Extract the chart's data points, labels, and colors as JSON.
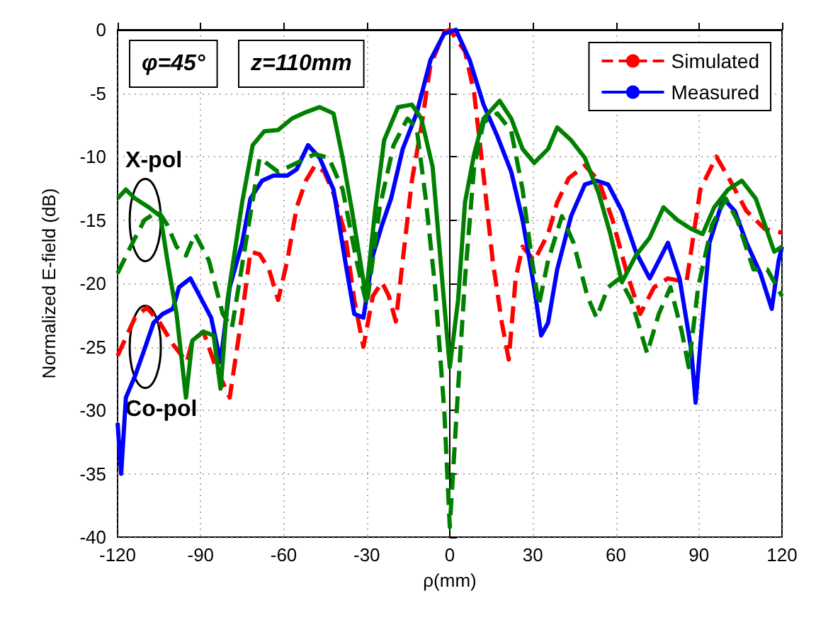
{
  "chart_data": {
    "type": "line",
    "xlabel": "ρ(mm)",
    "ylabel": "Normalized E-field (dB)",
    "xlim": [
      -120,
      120
    ],
    "ylim": [
      -40,
      0
    ],
    "xticks": [
      -120,
      -90,
      -60,
      -30,
      0,
      30,
      60,
      90,
      120
    ],
    "yticks": [
      -40,
      -35,
      -30,
      -25,
      -20,
      -15,
      -10,
      -5,
      0
    ],
    "grid": true,
    "legend": "top right",
    "marker": "none",
    "annotations": [
      "φ=45°",
      "z=110mm",
      {
        "text": "X-pol",
        "x": -110,
        "y": -15
      },
      {
        "text": "Co-pol",
        "x": -110,
        "y": -25
      }
    ],
    "series": [
      {
        "name": "Simulated",
        "color": "#ff0000",
        "line_style": "dashed",
        "x": [
          -120,
          -113.7,
          -109.5,
          -105,
          -100,
          -95,
          -93,
          -89,
          -84.5,
          -79.5,
          -75,
          -72,
          -68.7,
          -65.3,
          -62,
          -58.7,
          -55.3,
          -52,
          -48.7,
          -45.3,
          -42,
          -37.8,
          -34.5,
          -31.2,
          -27.8,
          -24.5,
          -22,
          -19.5,
          -17,
          -13.7,
          -10.3,
          -7,
          -2,
          0,
          5.5,
          8.8,
          12.2,
          15.5,
          18.8,
          21.3,
          23.8,
          26.3,
          30.5,
          35.5,
          38.8,
          43,
          48.8,
          53.8,
          58.8,
          64,
          68.8,
          73.8,
          78.8,
          85.5,
          90.5,
          96.3,
          101.3,
          107.2,
          113.8,
          120
        ],
        "values": [
          -25.7,
          -22.7,
          -21.9,
          -23,
          -24.8,
          -26.2,
          -24.5,
          -23.8,
          -26.6,
          -29,
          -22.4,
          -17.5,
          -17.7,
          -18.9,
          -21.3,
          -18.2,
          -14,
          -11.9,
          -10.7,
          -11.2,
          -12.9,
          -16.1,
          -21.3,
          -25,
          -21,
          -19.9,
          -21,
          -23,
          -18.2,
          -11.9,
          -7.7,
          -2.8,
          -0.2,
          0,
          -1.7,
          -5,
          -11.5,
          -18.2,
          -23.1,
          -26,
          -19.6,
          -17.1,
          -18.2,
          -16.1,
          -13.6,
          -11.7,
          -10.7,
          -11.9,
          -15,
          -19.2,
          -22.4,
          -20.3,
          -19.6,
          -19.9,
          -12.6,
          -10,
          -11.9,
          -14.3,
          -15.7,
          -16
        ]
      },
      {
        "name": "Measured",
        "color": "#0000ff",
        "line_style": "solid",
        "x": [
          -120,
          -118.7,
          -117,
          -113.7,
          -110.3,
          -107,
          -103.7,
          -100,
          -97.8,
          -93.7,
          -90.3,
          -86.2,
          -82.8,
          -79.5,
          -75,
          -72,
          -67.8,
          -63.7,
          -58.7,
          -55.3,
          -51.2,
          -47,
          -42,
          -37.8,
          -34.5,
          -31.2,
          -27.8,
          -24.5,
          -21.2,
          -17,
          -12,
          -7,
          -2,
          2.2,
          7.2,
          12.2,
          17.2,
          22.2,
          26.3,
          30.5,
          33,
          35.5,
          38.8,
          43.8,
          48.8,
          53,
          57.2,
          62.2,
          67.2,
          72.2,
          75.5,
          78.8,
          83,
          87.2,
          88.8,
          90.5,
          93.8,
          98.8,
          103,
          107.2,
          112.2,
          116.3,
          118.8,
          120
        ],
        "values": [
          -31,
          -35,
          -29,
          -27.3,
          -25.2,
          -23.1,
          -22.4,
          -22,
          -20.3,
          -19.6,
          -21,
          -22.7,
          -26.2,
          -20.3,
          -16.8,
          -13.3,
          -11.9,
          -11.5,
          -11.5,
          -11,
          -9.1,
          -10.1,
          -12.6,
          -18.2,
          -22.4,
          -22.7,
          -17.8,
          -15.4,
          -13.3,
          -9.4,
          -6.6,
          -2.4,
          -0.3,
          0,
          -2.4,
          -5.9,
          -8.4,
          -11.2,
          -15,
          -20.3,
          -24.1,
          -23.1,
          -18.9,
          -14.7,
          -12.2,
          -11.9,
          -12.2,
          -14.3,
          -17.5,
          -19.6,
          -18.2,
          -16.8,
          -19.6,
          -25.2,
          -29.4,
          -24.8,
          -16.8,
          -13.3,
          -14.3,
          -16.8,
          -19.2,
          -22,
          -18.2,
          -17.1
        ]
      },
      {
        "color": "#008000",
        "line_style": "dashed",
        "x": [
          -120,
          -115.3,
          -110.3,
          -105.3,
          -102,
          -98.7,
          -95.3,
          -92,
          -87,
          -82,
          -78.7,
          -68.7,
          -62,
          -55.3,
          -48.7,
          -43.7,
          -38.7,
          -33.7,
          -30,
          -25.3,
          -20.3,
          -15.3,
          -12,
          -8.7,
          -5.3,
          -2,
          0,
          3,
          5.5,
          8.8,
          12.2,
          17.2,
          22.2,
          26.3,
          29.7,
          32.2,
          35.5,
          40.5,
          44.7,
          49.7,
          53,
          57.2,
          61.3,
          65.5,
          71.3,
          75.5,
          79.7,
          83.8,
          86.3,
          89.7,
          94.7,
          99.7,
          103.8,
          109.7,
          114.7,
          120
        ],
        "values": [
          -19.2,
          -17.1,
          -15,
          -14.3,
          -15.4,
          -17.1,
          -17.8,
          -16.1,
          -18.2,
          -22.4,
          -23.5,
          -10.1,
          -11.2,
          -10.5,
          -9.8,
          -10.1,
          -12.6,
          -18.2,
          -21.7,
          -14,
          -9.1,
          -7,
          -7.7,
          -13.3,
          -20.3,
          -30,
          -39.2,
          -28.3,
          -19.6,
          -10.8,
          -7.3,
          -6.6,
          -8,
          -12.6,
          -18.2,
          -21.7,
          -18.2,
          -14.7,
          -16.8,
          -21,
          -22.7,
          -20.3,
          -19.6,
          -21.3,
          -25.5,
          -22.4,
          -20.3,
          -23.8,
          -26.6,
          -20.3,
          -15.4,
          -13.3,
          -15,
          -18.9,
          -18.9,
          -21
        ]
      },
      {
        "color": "#008000",
        "line_style": "solid",
        "x": [
          -120,
          -117,
          -113.7,
          -108.7,
          -104.5,
          -102,
          -98.7,
          -95.3,
          -93,
          -89,
          -85.3,
          -82.8,
          -80.3,
          -75,
          -71.2,
          -67,
          -62,
          -57,
          -52,
          -47,
          -42,
          -38.7,
          -35.3,
          -30.3,
          -27,
          -23.7,
          -18.7,
          -13.7,
          -10.3,
          -6.2,
          -2.8,
          0,
          3,
          5.5,
          8.8,
          12.2,
          18,
          22.2,
          26.3,
          30.5,
          35.5,
          38.8,
          43.8,
          48.8,
          53.8,
          58,
          62.2,
          67.2,
          72.2,
          77.2,
          82.2,
          87.2,
          91.3,
          95.5,
          100.5,
          105.5,
          110.5,
          117.2,
          120
        ],
        "values": [
          -13.3,
          -12.6,
          -13.3,
          -14,
          -14.7,
          -18.2,
          -22.4,
          -29,
          -24.5,
          -23.8,
          -24.1,
          -28.3,
          -21.3,
          -13.6,
          -9.1,
          -8,
          -7.9,
          -7,
          -6.5,
          -6.1,
          -6.6,
          -10.1,
          -14.3,
          -21,
          -14.3,
          -8.7,
          -6.1,
          -5.9,
          -7,
          -10.8,
          -19.6,
          -26.6,
          -21.3,
          -13.6,
          -9.8,
          -7,
          -5.6,
          -7,
          -9.4,
          -10.5,
          -9.4,
          -7.7,
          -8.7,
          -10.1,
          -12.9,
          -16.1,
          -19.9,
          -17.8,
          -16.4,
          -14,
          -15,
          -15.7,
          -16.1,
          -14,
          -12.6,
          -11.9,
          -13.3,
          -17.5,
          -17.1
        ]
      }
    ]
  }
}
